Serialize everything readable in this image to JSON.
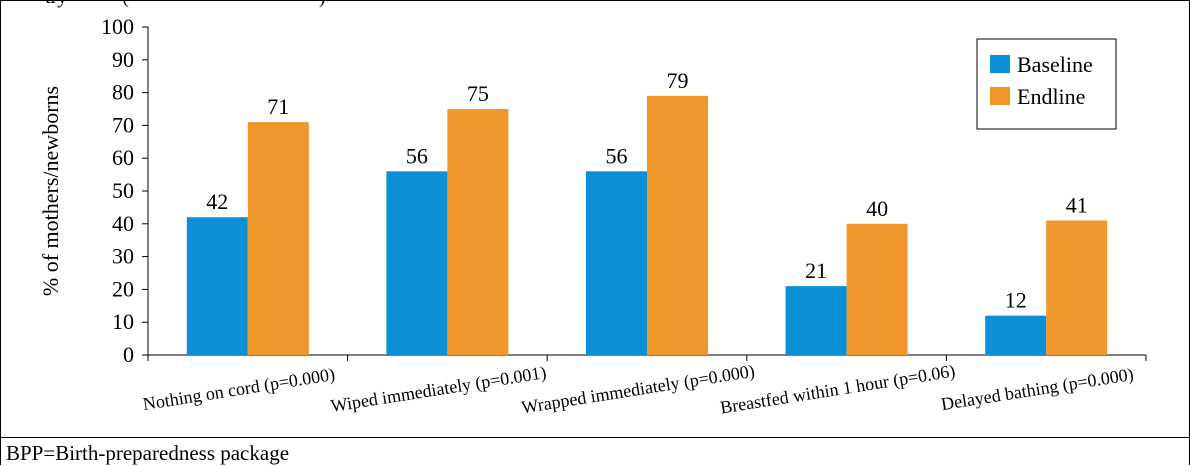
{
  "header_fragment": "   try           (                                      )",
  "footnote": "BPP=Birth-preparedness package",
  "chart_data": {
    "type": "bar",
    "title": "",
    "xlabel": "",
    "ylabel": "% of mothers/newborns",
    "ylim": [
      0,
      100
    ],
    "yticks": [
      0,
      10,
      20,
      30,
      40,
      50,
      60,
      70,
      80,
      90,
      100
    ],
    "grid": false,
    "legend_position": "top-right",
    "categories": [
      "Nothing on cord (p=0.000)",
      "Wiped immediately (p=0.001)",
      "Wrapped immediately (p=0.000)",
      "Breastfed within 1 hour (p=0.06)",
      "Delayed bathing (p=0.000)"
    ],
    "series": [
      {
        "name": "Baseline",
        "color": "#0b8fd6",
        "values": [
          42,
          56,
          56,
          21,
          12
        ]
      },
      {
        "name": "Endline",
        "color": "#f0962a",
        "values": [
          71,
          75,
          79,
          40,
          41
        ]
      }
    ]
  }
}
